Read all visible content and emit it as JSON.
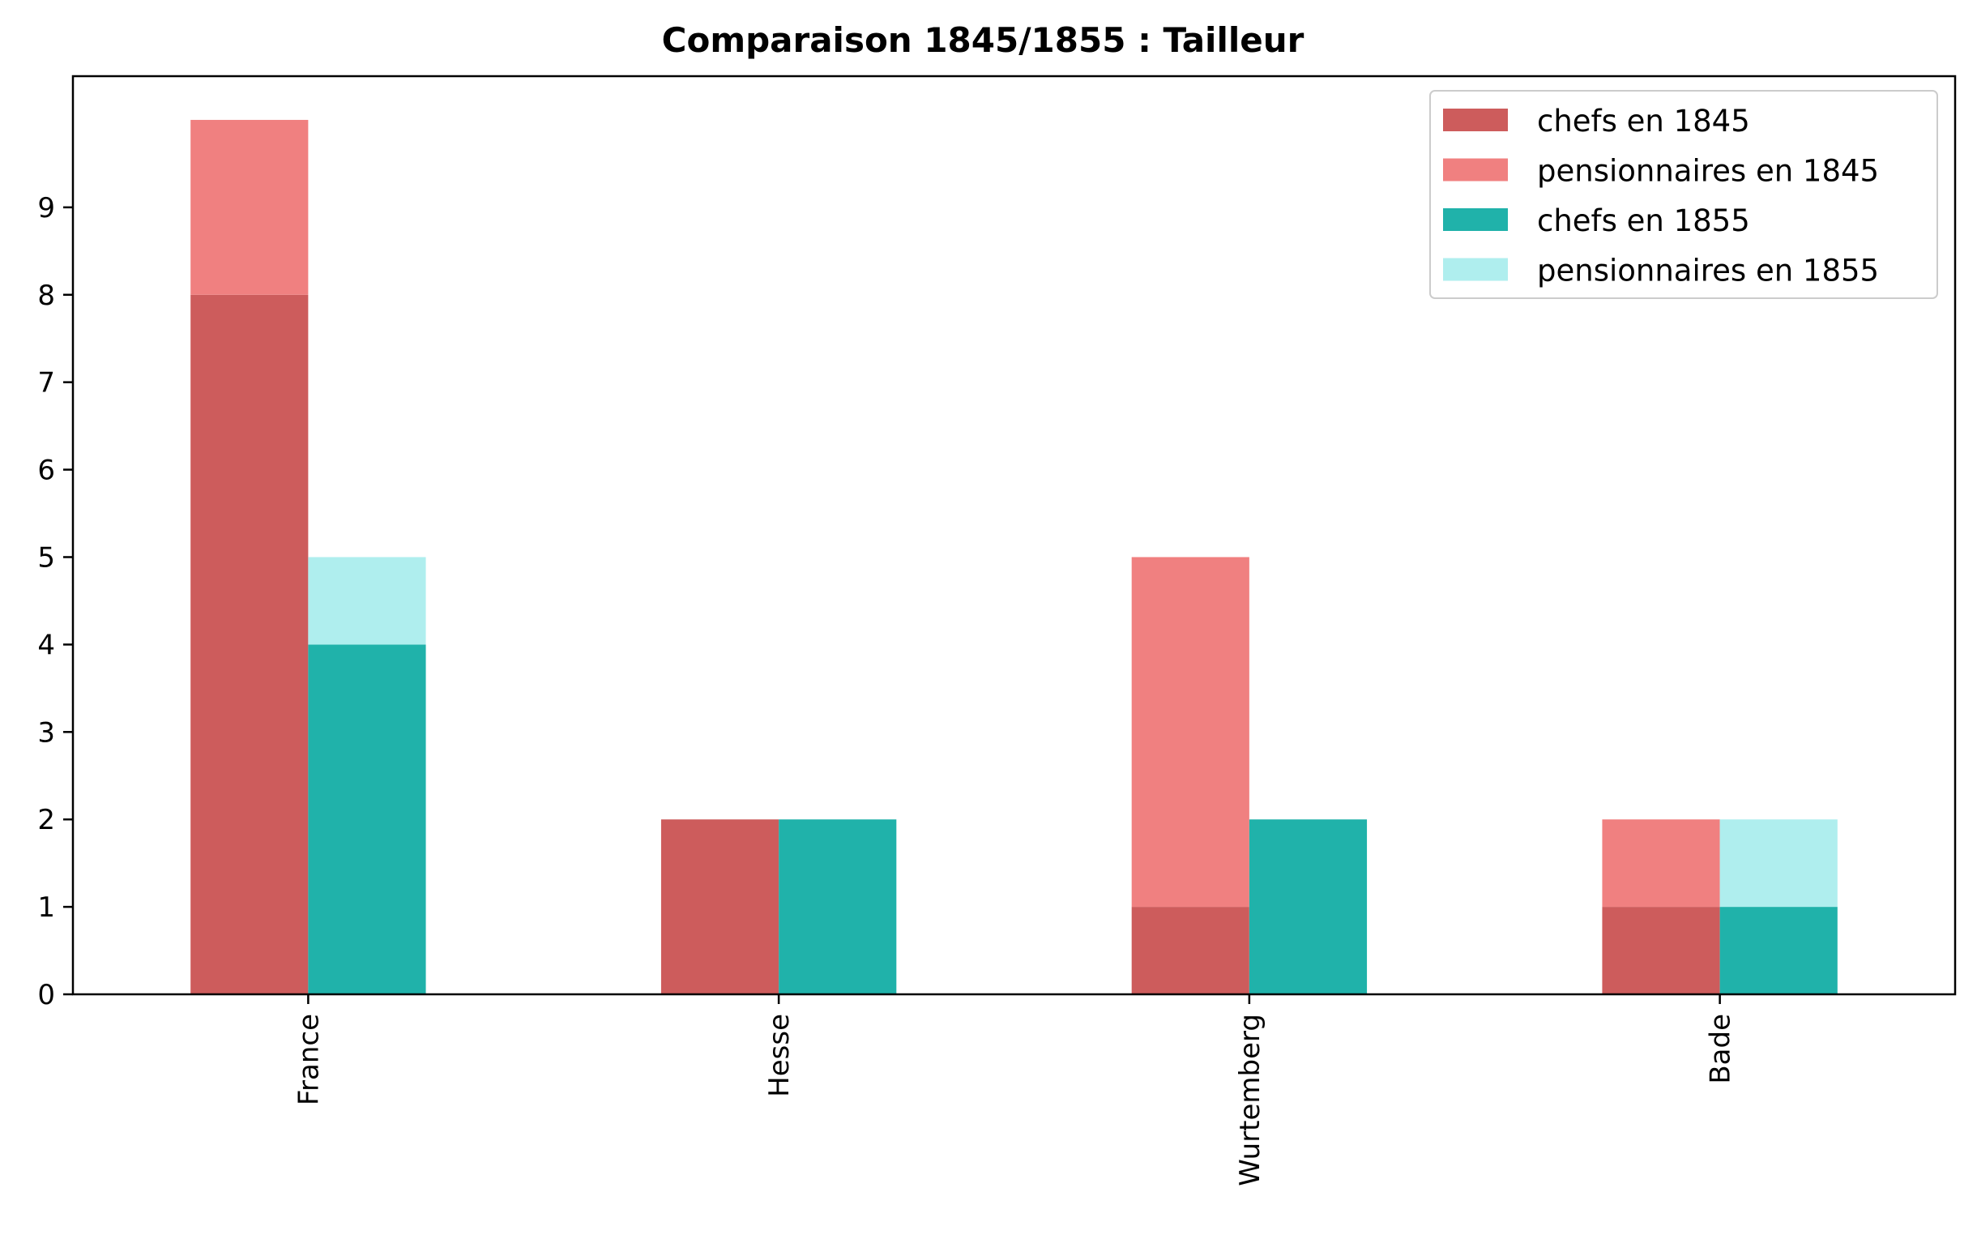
{
  "chart_data": {
    "type": "bar",
    "title": "Comparaison 1845/1855 : Tailleur",
    "xlabel": "",
    "ylabel": "",
    "categories": [
      "France",
      "Hesse",
      "Wurtemberg",
      "Bade"
    ],
    "ylim": [
      0,
      10.5
    ],
    "yticks": [
      0,
      1,
      2,
      3,
      4,
      5,
      6,
      7,
      8,
      9
    ],
    "stacked": true,
    "grid": false,
    "legend_position": "top-right",
    "series": [
      {
        "name": "chefs en 1845",
        "group": "1845",
        "color": "#cd5c5c",
        "values": [
          8,
          2,
          1,
          1
        ]
      },
      {
        "name": "pensionnaires en 1845",
        "group": "1845",
        "color": "#f08080",
        "values": [
          2,
          0,
          4,
          1
        ]
      },
      {
        "name": "chefs en 1855",
        "group": "1855",
        "color": "#20b2aa",
        "values": [
          4,
          2,
          2,
          1
        ]
      },
      {
        "name": "pensionnaires en 1855",
        "group": "1855",
        "color": "#afeeee",
        "values": [
          1,
          0,
          0,
          1
        ]
      }
    ]
  }
}
